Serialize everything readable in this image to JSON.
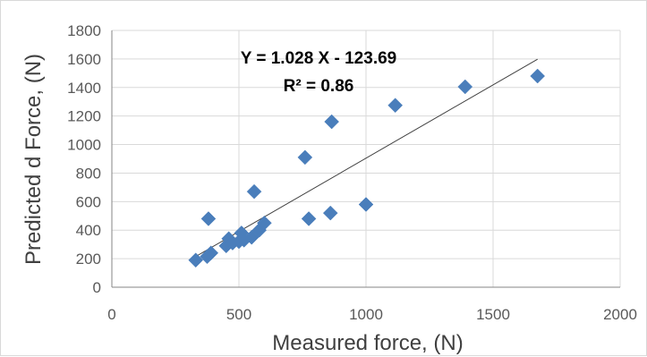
{
  "chart_data": {
    "type": "scatter",
    "xlabel": "Measured force, (N)",
    "ylabel": "Predicted d Force, (N)",
    "xlim": [
      0,
      2000
    ],
    "ylim": [
      0,
      1800
    ],
    "x_ticks": [
      0,
      500,
      1000,
      1500,
      2000
    ],
    "y_ticks": [
      0,
      200,
      400,
      600,
      800,
      1000,
      1200,
      1400,
      1600,
      1800
    ],
    "grid": true,
    "legend": "none",
    "marker": "diamond",
    "marker_color": "#4a7ebb",
    "line_color": "#404040",
    "series": [
      {
        "points": [
          {
            "x": 330,
            "y": 190
          },
          {
            "x": 375,
            "y": 215
          },
          {
            "x": 390,
            "y": 240
          },
          {
            "x": 380,
            "y": 480
          },
          {
            "x": 450,
            "y": 290
          },
          {
            "x": 460,
            "y": 340
          },
          {
            "x": 475,
            "y": 310
          },
          {
            "x": 500,
            "y": 320
          },
          {
            "x": 510,
            "y": 380
          },
          {
            "x": 520,
            "y": 330
          },
          {
            "x": 550,
            "y": 350
          },
          {
            "x": 560,
            "y": 670
          },
          {
            "x": 580,
            "y": 400
          },
          {
            "x": 600,
            "y": 450
          },
          {
            "x": 760,
            "y": 910
          },
          {
            "x": 775,
            "y": 480
          },
          {
            "x": 860,
            "y": 520
          },
          {
            "x": 865,
            "y": 1160
          },
          {
            "x": 1000,
            "y": 580
          },
          {
            "x": 1115,
            "y": 1275
          },
          {
            "x": 1390,
            "y": 1405
          },
          {
            "x": 1675,
            "y": 1480
          }
        ]
      }
    ],
    "trendline": {
      "slope": 1.028,
      "intercept": -123.69,
      "x_range": [
        330,
        1675
      ]
    },
    "annotations": {
      "equation": "Y = 1.028 X - 123.69",
      "r_squared": "R² = 0.86"
    }
  }
}
